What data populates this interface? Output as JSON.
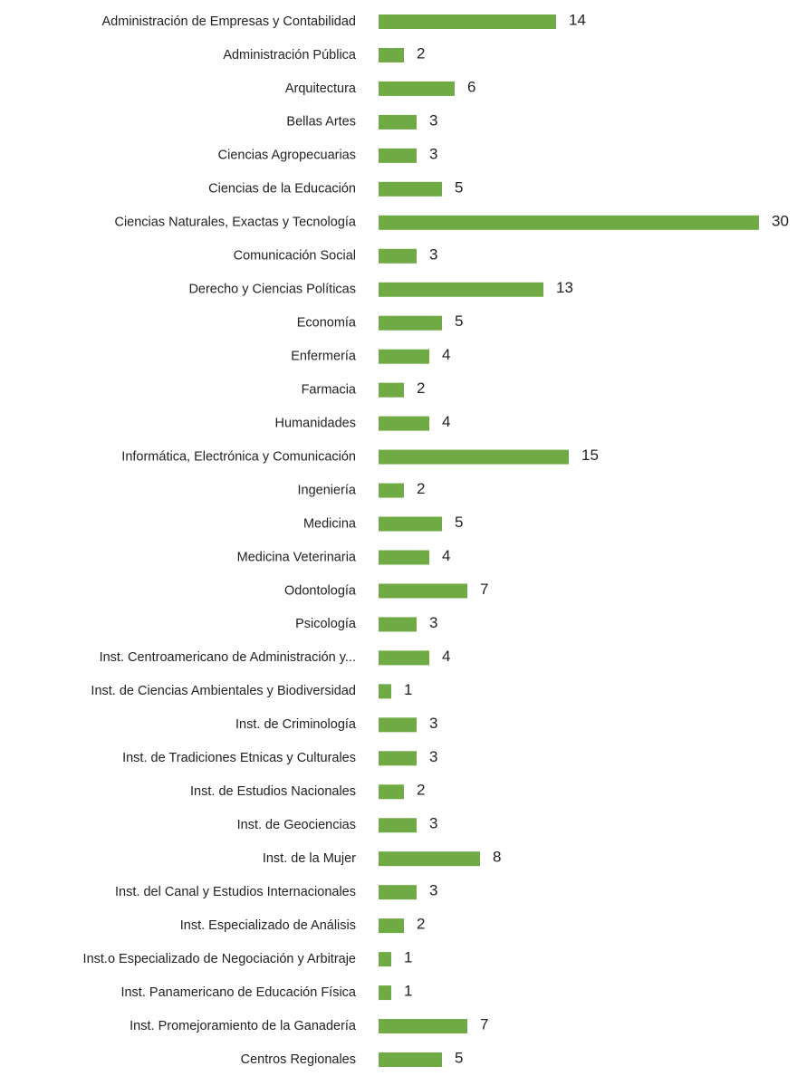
{
  "chart_data": {
    "type": "hbar",
    "categories": [
      "Administración de Empresas y Contabilidad",
      "Administración Pública",
      "Arquitectura",
      "Bellas Artes",
      "Ciencias Agropecuarias",
      "Ciencias de la Educación",
      "Ciencias Naturales, Exactas y Tecnología",
      "Comunicación Social",
      "Derecho y Ciencias Políticas",
      "Economía",
      "Enfermería",
      "Farmacia",
      "Humanidades",
      "Informática, Electrónica y Comunicación",
      "Ingeniería",
      "Medicina",
      "Medicina Veterinaria",
      "Odontología",
      "Psicología",
      "Inst. Centroamericano de Administración y...",
      "Inst. de Ciencias Ambientales y Biodiversidad",
      "Inst. de Criminología",
      "Inst. de Tradiciones Etnicas y Culturales",
      "Inst. de Estudios Nacionales",
      "Inst. de Geociencias",
      "Inst. de la Mujer",
      "Inst. del Canal y Estudios Internacionales",
      "Inst. Especializado de Análisis",
      "Inst.o Especializado de Negociación y Arbitraje",
      "Inst. Panamericano de Educación Física",
      "Inst. Promejoramiento de la Ganadería",
      "Centros Regionales"
    ],
    "values": [
      14,
      2,
      6,
      3,
      3,
      5,
      30,
      3,
      13,
      5,
      4,
      2,
      4,
      15,
      2,
      5,
      4,
      7,
      3,
      4,
      1,
      3,
      3,
      2,
      3,
      8,
      3,
      2,
      1,
      1,
      7,
      5
    ],
    "color": "#6faa45",
    "xlim": [
      0,
      30
    ]
  }
}
